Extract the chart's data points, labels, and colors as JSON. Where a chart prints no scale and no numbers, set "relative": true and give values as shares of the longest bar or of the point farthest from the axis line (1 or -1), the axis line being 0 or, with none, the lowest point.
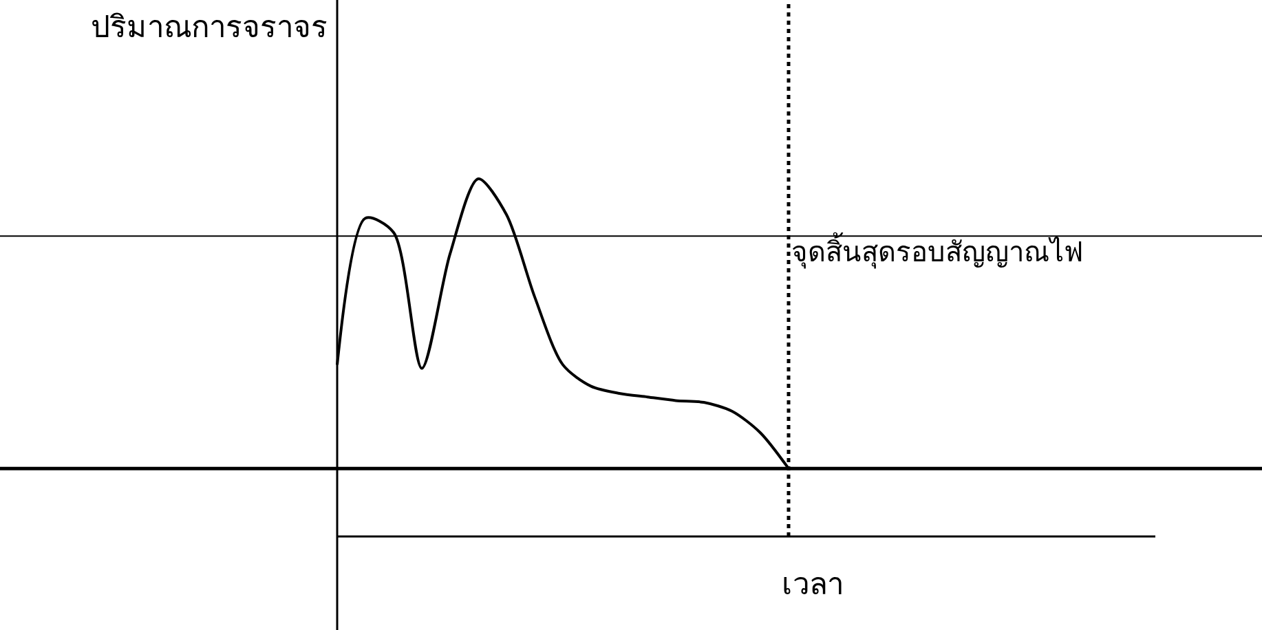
{
  "chart_data": {
    "type": "line",
    "relative": true,
    "ylabel": "ปริมาณการจราจร",
    "xlabel": "เวลา",
    "categories": [
      null,
      null,
      null,
      null,
      null,
      null,
      null,
      null,
      null,
      null,
      null,
      null,
      null,
      null,
      null,
      null,
      null,
      null,
      null,
      null,
      null,
      null,
      null,
      null,
      null,
      null,
      null,
      null,
      null,
      null
    ],
    "series": [
      {
        "color": "#000000",
        "values": [
          0.48,
          0.89,
          0.85,
          0.47,
          0.79,
          1.0,
          0.9,
          0.67,
          0.48,
          0.42,
          0.4,
          0.39,
          0.38,
          0.375,
          0.35,
          0.29,
          0.19,
          null,
          null,
          null,
          null,
          null,
          null,
          null,
          null,
          null,
          null,
          null,
          null,
          null
        ]
      }
    ],
    "ref_lines": [
      {
        "axis": "y",
        "value": 0.84,
        "color": "#000000",
        "line_style": "solid"
      },
      {
        "axis": "y",
        "value": 0.19,
        "color": "#000000",
        "line_style": "solid"
      }
    ],
    "annotations": [
      "จุดสิ้นสุดรอบสัญญาณไฟ"
    ],
    "marker": "none",
    "line_style": "solid"
  }
}
